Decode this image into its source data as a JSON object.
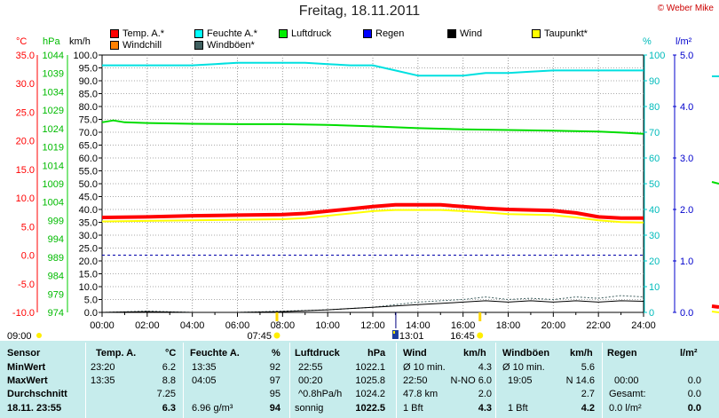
{
  "title": "Freitag, 18.11.2011",
  "credit": "© Weber Mike",
  "legend": [
    {
      "label": "Temp. A.*",
      "color": "#ff0000"
    },
    {
      "label": "Feuchte A.*",
      "color": "#00ffff"
    },
    {
      "label": "Luftdruck",
      "color": "#00ee00"
    },
    {
      "label": "Regen",
      "color": "#0000ff"
    },
    {
      "label": "Wind",
      "color": "#000000"
    },
    {
      "label": "Taupunkt*",
      "color": "#ffff00"
    },
    {
      "label": "Windchill",
      "color": "#ff8000"
    },
    {
      "label": "Windböen*",
      "color": "#406060"
    }
  ],
  "axis_units": {
    "temp": "°C",
    "press": "hPa",
    "wind": "km/h",
    "hum": "%",
    "rain": "l/m²"
  },
  "chart_data": {
    "type": "line",
    "x_ticks": [
      "00:00",
      "02:00",
      "04:00",
      "06:00",
      "08:00",
      "10:00",
      "12:00",
      "14:00",
      "16:00",
      "18:00",
      "20:00",
      "22:00",
      "24:00"
    ],
    "x_range_hours": [
      0,
      24
    ],
    "axes": {
      "temp": {
        "ticks": [
          "35.0",
          "30.0",
          "25.0",
          "20.0",
          "15.0",
          "10.0",
          "5.0",
          "0.0",
          "-5.0",
          "-10.0"
        ],
        "range": [
          -10,
          35
        ],
        "color": "#ff0000"
      },
      "press": {
        "ticks": [
          "1044",
          "1039",
          "1034",
          "1029",
          "1024",
          "1019",
          "1014",
          "1009",
          "1004",
          "999",
          "994",
          "989",
          "984",
          "979",
          "974"
        ],
        "range": [
          974,
          1044
        ],
        "color": "#00cc00"
      },
      "wind": {
        "ticks": [
          "100.0",
          "95.0",
          "90.0",
          "85.0",
          "80.0",
          "75.0",
          "70.0",
          "65.0",
          "60.0",
          "55.0",
          "50.0",
          "45.0",
          "40.0",
          "35.0",
          "30.0",
          "25.0",
          "20.0",
          "15.0",
          "10.0",
          "5.0",
          "0.0"
        ],
        "range": [
          0,
          100
        ],
        "color": "#000000"
      },
      "hum": {
        "ticks": [
          "100",
          "90",
          "80",
          "70",
          "60",
          "50",
          "40",
          "30",
          "20",
          "10",
          "0"
        ],
        "range": [
          0,
          100
        ],
        "color": "#00cccc"
      },
      "rain": {
        "ticks": [
          "5.0",
          "4.0",
          "3.0",
          "2.0",
          "1.0",
          "0.0"
        ],
        "range": [
          0,
          5
        ],
        "color": "#0000cc"
      }
    },
    "zero_line_temp": 0.0,
    "series": [
      {
        "name": "Feuchte A.*",
        "axis": "hum",
        "color": "#00e0e0",
        "width": 2,
        "x": [
          0,
          2,
          4,
          5,
          6,
          7,
          8,
          9,
          10,
          11,
          12,
          13,
          14,
          15,
          16,
          17,
          18,
          19,
          20,
          21,
          22,
          23,
          24
        ],
        "y": [
          96,
          96,
          96,
          96.5,
          97,
          97,
          97,
          97,
          96.5,
          96,
          96,
          94,
          92,
          92,
          92,
          93,
          93,
          93.5,
          94,
          94,
          94,
          94,
          94
        ]
      },
      {
        "name": "Luftdruck",
        "axis": "press",
        "color": "#00dd00",
        "width": 2,
        "x": [
          0,
          0.5,
          1,
          2,
          4,
          6,
          8,
          10,
          12,
          14,
          16,
          18,
          20,
          22,
          23,
          24
        ],
        "y": [
          1025.7,
          1026.2,
          1025.7,
          1025.5,
          1025.3,
          1025.2,
          1025.2,
          1025.0,
          1024.6,
          1024.1,
          1023.8,
          1023.6,
          1023.4,
          1023.2,
          1022.9,
          1022.6
        ]
      },
      {
        "name": "Temp. A.*",
        "axis": "temp",
        "color": "#ff0000",
        "width": 4,
        "x": [
          0,
          2,
          4,
          6,
          8,
          9,
          10,
          11,
          12,
          13,
          14,
          15,
          16,
          17,
          18,
          20,
          21,
          22,
          23,
          24
        ],
        "y": [
          6.6,
          6.7,
          6.9,
          7.0,
          7.1,
          7.3,
          7.7,
          8.1,
          8.5,
          8.8,
          8.8,
          8.8,
          8.5,
          8.2,
          8.0,
          7.8,
          7.4,
          6.7,
          6.5,
          6.5
        ]
      },
      {
        "name": "Taupunkt*",
        "axis": "temp",
        "color": "#ffff00",
        "width": 2,
        "x": [
          0,
          2,
          4,
          6,
          8,
          9,
          10,
          11,
          12,
          13,
          14,
          15,
          16,
          17,
          18,
          20,
          21,
          22,
          23,
          24
        ],
        "y": [
          5.9,
          6.0,
          6.1,
          6.2,
          6.3,
          6.5,
          6.9,
          7.3,
          7.7,
          7.9,
          7.9,
          7.9,
          7.7,
          7.5,
          7.2,
          7.0,
          6.6,
          6.1,
          5.8,
          5.7
        ]
      },
      {
        "name": "Windböen*",
        "axis": "wind",
        "color": "#406060",
        "width": 1,
        "dashed": true,
        "x": [
          0,
          2,
          4,
          6,
          8,
          10,
          12,
          13,
          14,
          15,
          16,
          17,
          18,
          19,
          20,
          21,
          22,
          23,
          24
        ],
        "y": [
          0,
          0.5,
          0,
          0,
          0.5,
          1,
          2,
          3,
          4,
          4.5,
          5,
          6,
          5,
          5.5,
          5,
          6,
          5.5,
          6.5,
          6
        ]
      },
      {
        "name": "Wind",
        "axis": "wind",
        "color": "#000000",
        "width": 1,
        "x": [
          0,
          2,
          4,
          6,
          8,
          10,
          12,
          13,
          14,
          15,
          16,
          17,
          18,
          19,
          20,
          21,
          22,
          23,
          24
        ],
        "y": [
          0,
          0.3,
          0,
          0,
          0.3,
          1,
          2,
          2.5,
          3,
          3.5,
          4,
          4.5,
          4,
          4.5,
          4,
          4.5,
          4,
          4.5,
          4.3
        ]
      }
    ],
    "sun_markers": [
      {
        "label": "09:00",
        "kind": "left"
      },
      {
        "label": "07:45",
        "kind": "sunrise"
      },
      {
        "label": "13:01",
        "kind": "noon"
      },
      {
        "label": "16:45",
        "kind": "sunset"
      }
    ]
  },
  "table": {
    "headers": {
      "sensor": "Sensor",
      "temp": "Temp. A.",
      "temp_unit": "°C",
      "hum": "Feuchte A.",
      "hum_unit": "%",
      "press": "Luftdruck",
      "press_unit": "hPa",
      "wind": "Wind",
      "wind_unit": "km/h",
      "gust": "Windböen",
      "gust_unit": "km/h",
      "rain": "Regen",
      "rain_unit": "l/m²"
    },
    "rows": [
      {
        "label": "MinWert",
        "temp_time": "23:20",
        "temp_val": "6.2",
        "hum_time": "13:35",
        "hum_val": "92",
        "press_time": "22:55",
        "press_val": "1022.1",
        "wind_a": "Ø 10 min.",
        "wind_val": "4.3",
        "gust_a": "Ø 10 min.",
        "gust_val": "5.6",
        "rain_a": "",
        "rain_val": ""
      },
      {
        "label": "MaxWert",
        "temp_time": "13:35",
        "temp_val": "8.8",
        "hum_time": "04:05",
        "hum_val": "97",
        "press_time": "00:20",
        "press_val": "1025.8",
        "wind_a": "22:50",
        "wind_val": "N-NO 6.0",
        "gust_a": "19:05",
        "gust_val": "N 14.6",
        "rain_a": "00:00",
        "rain_val": "0.0"
      },
      {
        "label": "Durchschnitt",
        "temp_time": "",
        "temp_val": "7.25",
        "hum_time": "",
        "hum_val": "95",
        "press_time": "^0.8hPa/h",
        "press_val": "1024.2",
        "wind_a": "47.8 km",
        "wind_val": "2.0",
        "gust_a": "",
        "gust_val": "2.7",
        "rain_a": "Gesamt:",
        "rain_val": "0.0"
      },
      {
        "label": "18.11. 23:55",
        "temp_time": "",
        "temp_val": "6.3",
        "hum_time": "6.96 g/m³",
        "hum_val": "94",
        "press_time": "sonnig",
        "press_val": "1022.5",
        "wind_a": "1 Bft",
        "wind_val": "4.3",
        "gust_a": "1 Bft",
        "gust_val": "4.2",
        "rain_a": "0.0 l/m²",
        "rain_val": "0.0"
      }
    ]
  }
}
